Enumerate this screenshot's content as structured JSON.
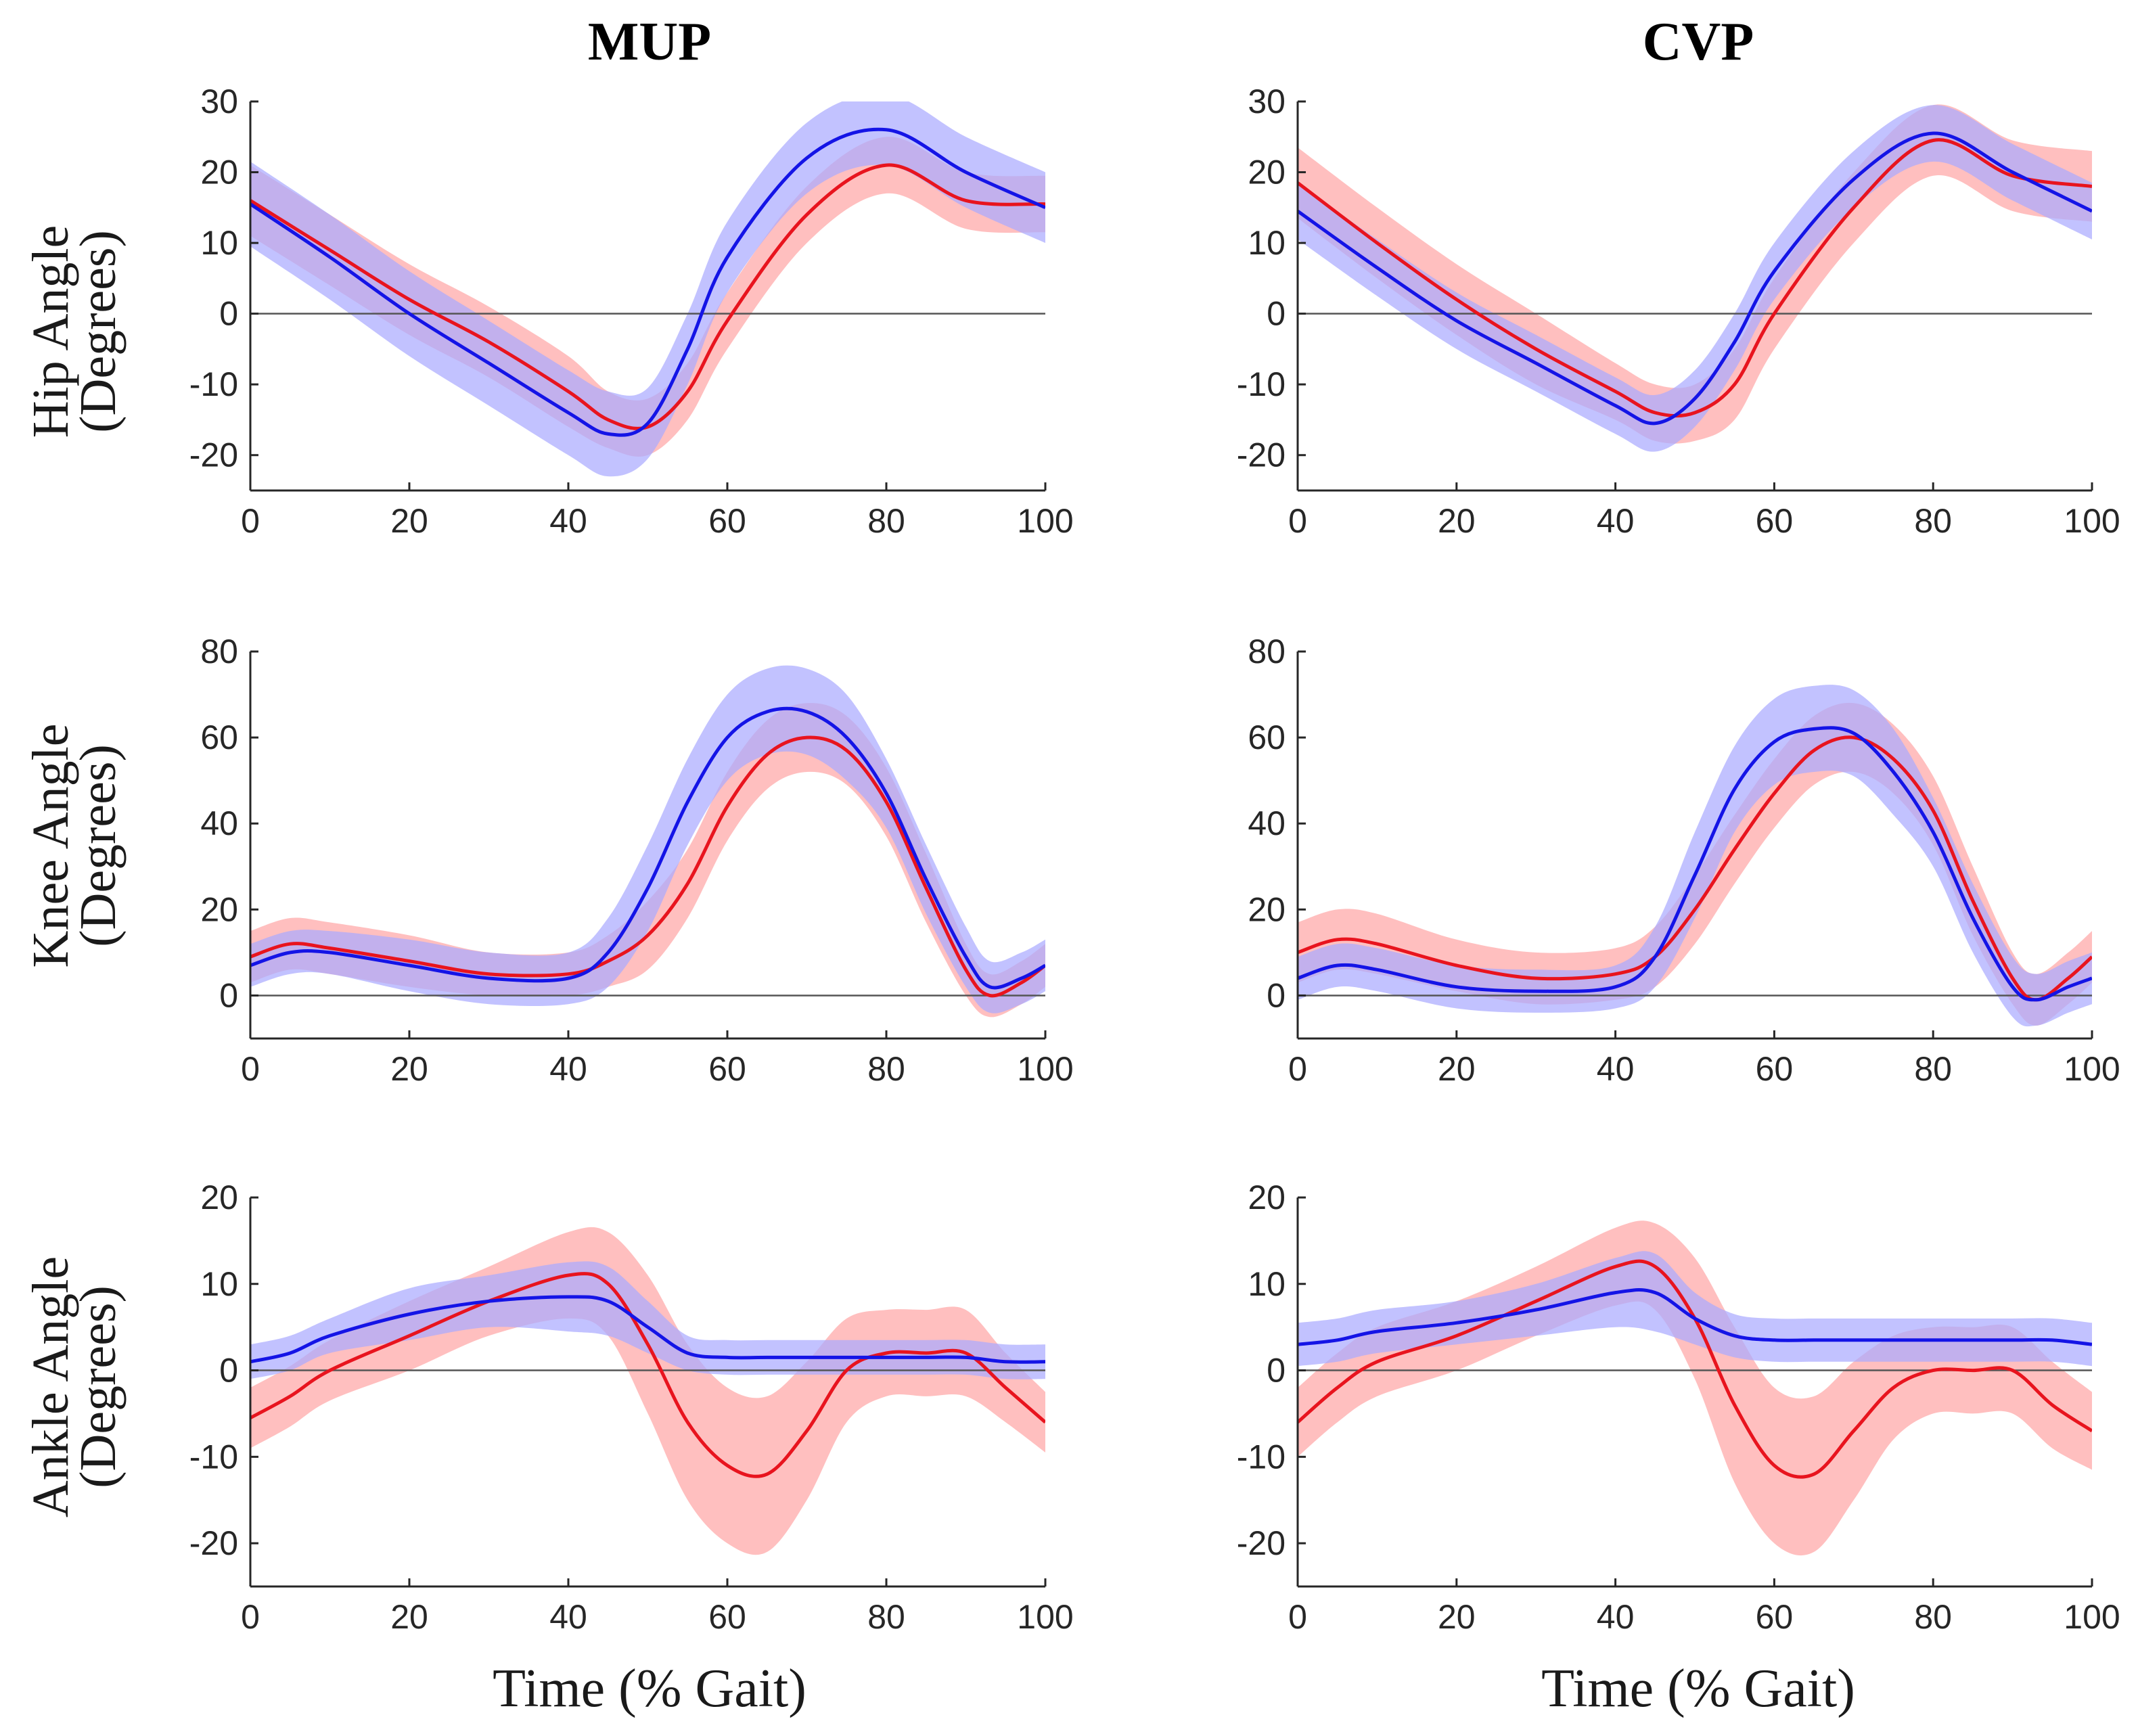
{
  "figure": {
    "column_titles": [
      "MUP",
      "CVP"
    ],
    "row_ylabels": [
      [
        "Hip Angle",
        "(Degrees)"
      ],
      [
        "Knee Angle",
        "(Degrees)"
      ],
      [
        "Ankle Angle",
        "(Degrees)"
      ]
    ],
    "xlabel": "Time (% Gait)",
    "colors": {
      "red_line": "#e8141e",
      "red_band": "#ffaaaa",
      "blue_line": "#1414e6",
      "blue_band": "#aaaaff",
      "overlap_line": "#a0103a"
    }
  },
  "chart_data": [
    {
      "type": "line",
      "id": "hip-mup",
      "title": "MUP",
      "ylabel": "Hip Angle (Degrees)",
      "xlabel": "",
      "xlim": [
        0,
        100
      ],
      "ylim": [
        -25,
        30
      ],
      "xticks": [
        "0",
        "20",
        "40",
        "60",
        "80",
        "100"
      ],
      "yticks": [
        "30",
        "20",
        "10",
        "0",
        "-10",
        "-20"
      ],
      "x": [
        0,
        10,
        20,
        30,
        40,
        45,
        50,
        55,
        60,
        70,
        80,
        90,
        100
      ],
      "series": [
        {
          "name": "red",
          "values": [
            16,
            9,
            2,
            -4,
            -11,
            -15,
            -16,
            -11,
            -1,
            14,
            21,
            16,
            15.5
          ],
          "sd": [
            5,
            5,
            5,
            5,
            5,
            4,
            4,
            4,
            4,
            4,
            4,
            4,
            4
          ]
        },
        {
          "name": "blue",
          "values": [
            15.5,
            8,
            0,
            -7,
            -14,
            -17,
            -15.5,
            -5,
            8,
            22,
            26,
            20,
            15
          ],
          "sd": [
            6,
            6,
            6,
            6,
            6,
            6,
            5,
            5,
            5,
            5,
            5,
            5,
            5
          ]
        }
      ]
    },
    {
      "type": "line",
      "id": "hip-cvp",
      "title": "CVP",
      "ylabel": "",
      "xlabel": "",
      "xlim": [
        0,
        100
      ],
      "ylim": [
        -25,
        30
      ],
      "xticks": [
        "0",
        "20",
        "40",
        "60",
        "80",
        "100"
      ],
      "yticks": [
        "30",
        "20",
        "10",
        "0",
        "-10",
        "-20"
      ],
      "x": [
        0,
        10,
        20,
        30,
        40,
        45,
        50,
        55,
        60,
        70,
        80,
        90,
        100
      ],
      "series": [
        {
          "name": "red",
          "values": [
            18.5,
            10,
            2,
            -5,
            -11,
            -14,
            -14,
            -10,
            0,
            15,
            24.5,
            19.5,
            18
          ],
          "sd": [
            5,
            5,
            5,
            5,
            4,
            4,
            4,
            5,
            5,
            5,
            5,
            5,
            5
          ]
        },
        {
          "name": "blue",
          "values": [
            14.5,
            6.5,
            -1,
            -7,
            -13,
            -15.5,
            -12,
            -4,
            6,
            19,
            25.5,
            20,
            14.5
          ],
          "sd": [
            4,
            4,
            4,
            4,
            4,
            4,
            4,
            4,
            4,
            4,
            4,
            4,
            4
          ]
        }
      ]
    },
    {
      "type": "line",
      "id": "knee-mup",
      "title": "",
      "ylabel": "Knee Angle (Degrees)",
      "xlabel": "",
      "xlim": [
        0,
        100
      ],
      "ylim": [
        -10,
        80
      ],
      "xticks": [
        "0",
        "20",
        "40",
        "60",
        "80",
        "100"
      ],
      "yticks": [
        "80",
        "60",
        "40",
        "20",
        "0"
      ],
      "x": [
        0,
        5,
        10,
        20,
        30,
        40,
        45,
        50,
        55,
        60,
        65,
        70,
        75,
        80,
        85,
        90,
        93,
        97,
        100
      ],
      "series": [
        {
          "name": "red",
          "values": [
            9,
            12,
            11,
            8,
            5,
            5,
            8,
            14,
            26,
            44,
            56,
            60,
            57,
            45,
            25,
            6,
            0,
            3,
            7
          ],
          "sd": [
            6,
            6,
            6,
            6,
            5,
            5,
            6,
            8,
            8,
            8,
            8,
            8,
            8,
            8,
            8,
            6,
            5,
            5,
            5
          ]
        },
        {
          "name": "blue",
          "values": [
            7,
            10,
            10,
            7,
            4,
            4,
            10,
            25,
            45,
            60,
            66,
            66,
            60,
            47,
            27,
            9,
            2,
            4,
            7
          ],
          "sd": [
            5,
            5,
            5,
            6,
            6,
            6,
            8,
            10,
            10,
            10,
            10,
            10,
            10,
            8,
            8,
            7,
            6,
            6,
            6
          ]
        }
      ]
    },
    {
      "type": "line",
      "id": "knee-cvp",
      "title": "",
      "ylabel": "",
      "xlabel": "",
      "xlim": [
        0,
        100
      ],
      "ylim": [
        -10,
        80
      ],
      "xticks": [
        "0",
        "20",
        "40",
        "60",
        "80",
        "100"
      ],
      "yticks": [
        "80",
        "60",
        "40",
        "20",
        "0"
      ],
      "x": [
        0,
        5,
        10,
        20,
        30,
        40,
        45,
        50,
        55,
        60,
        65,
        70,
        75,
        80,
        85,
        90,
        93,
        97,
        100
      ],
      "series": [
        {
          "name": "red",
          "values": [
            10,
            13,
            12,
            7,
            4,
            5,
            9,
            20,
            34,
            47,
            57,
            60,
            55,
            43,
            22,
            4,
            -1,
            4,
            9
          ],
          "sd": [
            7,
            7,
            7,
            6,
            6,
            6,
            7,
            8,
            8,
            8,
            8,
            8,
            8,
            8,
            8,
            6,
            6,
            6,
            6
          ]
        },
        {
          "name": "blue",
          "values": [
            4,
            7,
            6,
            2,
            1,
            2,
            9,
            28,
            48,
            59,
            62,
            61,
            52,
            38,
            18,
            2,
            -1,
            2,
            4
          ],
          "sd": [
            5,
            5,
            5,
            5,
            5,
            5,
            7,
            10,
            10,
            10,
            10,
            10,
            10,
            8,
            8,
            7,
            6,
            6,
            6
          ]
        }
      ]
    },
    {
      "type": "line",
      "id": "ankle-mup",
      "title": "",
      "ylabel": "Ankle Angle (Degrees)",
      "xlabel": "Time (% Gait)",
      "xlim": [
        0,
        100
      ],
      "ylim": [
        -25,
        20
      ],
      "xticks": [
        "0",
        "20",
        "40",
        "60",
        "80",
        "100"
      ],
      "yticks": [
        "20",
        "10",
        "0",
        "-10",
        "-20"
      ],
      "x": [
        0,
        5,
        10,
        20,
        30,
        40,
        45,
        50,
        55,
        60,
        65,
        70,
        75,
        80,
        85,
        90,
        95,
        100
      ],
      "series": [
        {
          "name": "red",
          "values": [
            -5.5,
            -3,
            0,
            4,
            8,
            11,
            10,
            3,
            -6,
            -11,
            -12,
            -7,
            0,
            2,
            2,
            2,
            -2,
            -6
          ],
          "sd": [
            3.5,
            3.5,
            3.5,
            4,
            4,
            5,
            6,
            8,
            9,
            9,
            9,
            8,
            6,
            5,
            5,
            5,
            4,
            3.5
          ]
        },
        {
          "name": "blue",
          "values": [
            1,
            2,
            4,
            6.5,
            8,
            8.5,
            8,
            5,
            2,
            1.5,
            1.5,
            1.5,
            1.5,
            1.5,
            1.5,
            1.5,
            1,
            1
          ],
          "sd": [
            2,
            2,
            2,
            3,
            3,
            4,
            4,
            3,
            2,
            2,
            2,
            2,
            2,
            2,
            2,
            2,
            2,
            2
          ]
        }
      ]
    },
    {
      "type": "line",
      "id": "ankle-cvp",
      "title": "",
      "ylabel": "",
      "xlabel": "Time (% Gait)",
      "xlim": [
        0,
        100
      ],
      "ylim": [
        -25,
        20
      ],
      "xticks": [
        "0",
        "20",
        "40",
        "60",
        "80",
        "100"
      ],
      "yticks": [
        "20",
        "10",
        "0",
        "-10",
        "-20"
      ],
      "x": [
        0,
        5,
        10,
        20,
        30,
        40,
        45,
        50,
        55,
        60,
        65,
        70,
        75,
        80,
        85,
        90,
        95,
        100
      ],
      "series": [
        {
          "name": "red",
          "values": [
            -6,
            -2,
            1,
            4,
            8,
            12,
            12,
            6,
            -4,
            -11,
            -12,
            -7,
            -2,
            0,
            0,
            0,
            -4,
            -7
          ],
          "sd": [
            4,
            4,
            4,
            4,
            4,
            4.5,
            5,
            7,
            9,
            9,
            9,
            8,
            6,
            5,
            5,
            5,
            5,
            4.5
          ]
        },
        {
          "name": "blue",
          "values": [
            3,
            3.5,
            4.5,
            5.5,
            7,
            9,
            9,
            6,
            4,
            3.5,
            3.5,
            3.5,
            3.5,
            3.5,
            3.5,
            3.5,
            3.5,
            3
          ],
          "sd": [
            2.5,
            2.5,
            2.5,
            2.5,
            3,
            4,
            4.5,
            3,
            2.5,
            2.5,
            2.5,
            2.5,
            2.5,
            2.5,
            2.5,
            2.5,
            2.5,
            2.5
          ]
        }
      ]
    }
  ]
}
